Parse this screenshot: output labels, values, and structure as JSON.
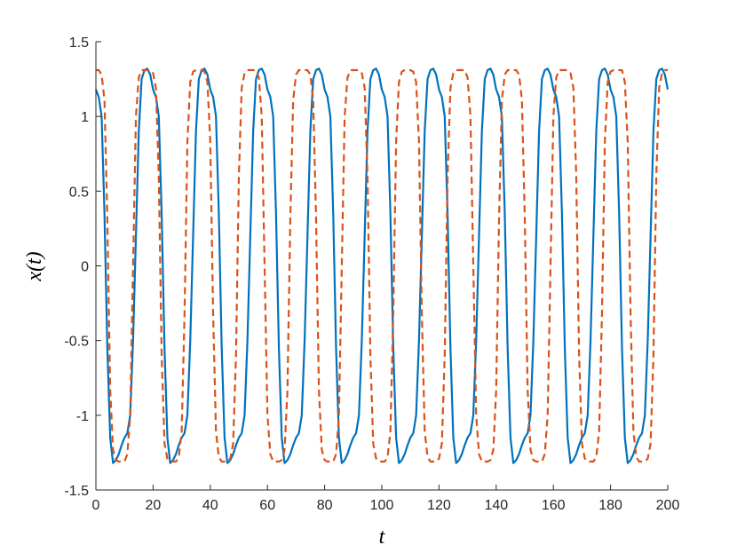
{
  "chart_data": {
    "type": "line",
    "x_label": "t",
    "y_label": "x(t)",
    "x": [
      0,
      1,
      2,
      3,
      4,
      5,
      6,
      7,
      8,
      9,
      10,
      11,
      12,
      13,
      14,
      15,
      16,
      17,
      18,
      19,
      20,
      21,
      22,
      23,
      24,
      25,
      26,
      27,
      28,
      29,
      30,
      31,
      32,
      33,
      34,
      35,
      36,
      37,
      38,
      39,
      40,
      41,
      42,
      43,
      44,
      45,
      46,
      47,
      48,
      49,
      50,
      51,
      52,
      53,
      54,
      55,
      56,
      57,
      58,
      59,
      60,
      61,
      62,
      63,
      64,
      65,
      66,
      67,
      68,
      69,
      70,
      71,
      72,
      73,
      74,
      75,
      76,
      77,
      78,
      79,
      80,
      81,
      82,
      83,
      84,
      85,
      86,
      87,
      88,
      89,
      90,
      91,
      92,
      93,
      94,
      95,
      96,
      97,
      98,
      99,
      100,
      101,
      102,
      103,
      104,
      105,
      106,
      107,
      108,
      109,
      110,
      111,
      112,
      113,
      114,
      115,
      116,
      117,
      118,
      119,
      120,
      121,
      122,
      123,
      124,
      125,
      126,
      127,
      128,
      129,
      130,
      131,
      132,
      133,
      134,
      135,
      136,
      137,
      138,
      139,
      140,
      141,
      142,
      143,
      144,
      145,
      146,
      147,
      148,
      149,
      150,
      151,
      152,
      153,
      154,
      155,
      156,
      157,
      158,
      159,
      160,
      161,
      162,
      163,
      164,
      165,
      166,
      167,
      168,
      169,
      170,
      171,
      172,
      173,
      174,
      175,
      176,
      177,
      178,
      179,
      180,
      181,
      182,
      183,
      184,
      185,
      186,
      187,
      188,
      189,
      190,
      191,
      192,
      193,
      194,
      195,
      196,
      197,
      198,
      199,
      200
    ],
    "series": [
      {
        "color": "#0072bd",
        "dash": false,
        "values": [
          1.18,
          1.13,
          1.0,
          0.35,
          -0.55,
          -1.15,
          -1.32,
          -1.3,
          -1.26,
          -1.2,
          -1.15,
          -1.12,
          -1.0,
          -0.5,
          0.2,
          0.9,
          1.25,
          1.31,
          1.32,
          1.28,
          1.18,
          1.13,
          1.0,
          0.35,
          -0.55,
          -1.15,
          -1.32,
          -1.3,
          -1.26,
          -1.2,
          -1.15,
          -1.12,
          -1.0,
          -0.5,
          0.2,
          0.9,
          1.25,
          1.31,
          1.32,
          1.28,
          1.18,
          1.13,
          1.0,
          0.35,
          -0.55,
          -1.15,
          -1.32,
          -1.3,
          -1.26,
          -1.2,
          -1.15,
          -1.12,
          -1.0,
          -0.5,
          0.2,
          0.9,
          1.25,
          1.31,
          1.32,
          1.28,
          1.18,
          1.13,
          1.0,
          0.35,
          -0.55,
          -1.15,
          -1.32,
          -1.3,
          -1.26,
          -1.2,
          -1.15,
          -1.12,
          -1.0,
          -0.5,
          0.2,
          0.9,
          1.25,
          1.31,
          1.32,
          1.28,
          1.18,
          1.13,
          1.0,
          0.35,
          -0.55,
          -1.15,
          -1.32,
          -1.3,
          -1.26,
          -1.2,
          -1.15,
          -1.12,
          -1.0,
          -0.5,
          0.2,
          0.9,
          1.25,
          1.31,
          1.32,
          1.28,
          1.18,
          1.13,
          1.0,
          0.35,
          -0.55,
          -1.15,
          -1.32,
          -1.3,
          -1.26,
          -1.2,
          -1.15,
          -1.12,
          -1.0,
          -0.5,
          0.2,
          0.9,
          1.25,
          1.31,
          1.32,
          1.28,
          1.18,
          1.13,
          1.0,
          0.35,
          -0.55,
          -1.15,
          -1.32,
          -1.3,
          -1.26,
          -1.2,
          -1.15,
          -1.12,
          -1.0,
          -0.5,
          0.2,
          0.9,
          1.25,
          1.31,
          1.32,
          1.28,
          1.18,
          1.13,
          1.0,
          0.35,
          -0.55,
          -1.15,
          -1.32,
          -1.3,
          -1.26,
          -1.2,
          -1.15,
          -1.12,
          -1.0,
          -0.5,
          0.2,
          0.9,
          1.25,
          1.31,
          1.32,
          1.28,
          1.18,
          1.13,
          1.0,
          0.35,
          -0.55,
          -1.15,
          -1.32,
          -1.3,
          -1.26,
          -1.2,
          -1.15,
          -1.12,
          -1.0,
          -0.5,
          0.2,
          0.9,
          1.25,
          1.31,
          1.32,
          1.28,
          1.18,
          1.13,
          1.0,
          0.35,
          -0.55,
          -1.15,
          -1.32,
          -1.3,
          -1.26,
          -1.2,
          -1.15,
          -1.12,
          -1.0,
          -0.5,
          0.2,
          0.9,
          1.25,
          1.31,
          1.32,
          1.28,
          1.18
        ]
      },
      {
        "color": "#d95319",
        "dash": true,
        "values": [
          1.31,
          1.31,
          1.28,
          1.11,
          0.32,
          -0.83,
          -1.23,
          -1.3,
          -1.31,
          -1.31,
          -1.31,
          -1.26,
          -1.0,
          0,
          1.0,
          1.26,
          1.31,
          1.31,
          1.31,
          1.31,
          1.29,
          1.19,
          0.6,
          -0.6,
          -1.19,
          -1.29,
          -1.31,
          -1.31,
          -1.31,
          -1.28,
          -1.11,
          -0.32,
          0.83,
          1.23,
          1.3,
          1.31,
          1.31,
          1.31,
          1.3,
          1.23,
          0.83,
          -0.32,
          -1.11,
          -1.28,
          -1.31,
          -1.31,
          -1.31,
          -1.29,
          -1.19,
          -0.6,
          0.6,
          1.19,
          1.29,
          1.31,
          1.31,
          1.31,
          1.31,
          1.26,
          1.0,
          0,
          -1.0,
          -1.26,
          -1.31,
          -1.31,
          -1.31,
          -1.3,
          -1.23,
          -0.83,
          0.32,
          1.11,
          1.28,
          1.31,
          1.31,
          1.31,
          1.31,
          1.28,
          1.11,
          0.32,
          -0.83,
          -1.23,
          -1.3,
          -1.31,
          -1.31,
          -1.31,
          -1.26,
          -1.0,
          0,
          1.0,
          1.26,
          1.31,
          1.31,
          1.31,
          1.31,
          1.29,
          1.19,
          0.6,
          -0.6,
          -1.19,
          -1.29,
          -1.31,
          -1.31,
          -1.31,
          -1.28,
          -1.11,
          -0.32,
          0.83,
          1.23,
          1.3,
          1.31,
          1.31,
          1.31,
          1.3,
          1.23,
          0.83,
          -0.32,
          -1.11,
          -1.28,
          -1.31,
          -1.31,
          -1.31,
          -1.29,
          -1.19,
          -0.6,
          0.6,
          1.19,
          1.29,
          1.31,
          1.31,
          1.31,
          1.31,
          1.26,
          1.0,
          0,
          -1.0,
          -1.26,
          -1.31,
          -1.31,
          -1.31,
          -1.3,
          -1.23,
          -0.83,
          0.32,
          1.11,
          1.28,
          1.31,
          1.31,
          1.31,
          1.31,
          1.28,
          1.11,
          0.32,
          -0.83,
          -1.23,
          -1.3,
          -1.31,
          -1.31,
          -1.31,
          -1.26,
          -1.0,
          0,
          1.0,
          1.26,
          1.31,
          1.31,
          1.31,
          1.31,
          1.29,
          1.19,
          0.6,
          -0.6,
          -1.19,
          -1.29,
          -1.31,
          -1.31,
          -1.31,
          -1.28,
          -1.11,
          -0.32,
          0.83,
          1.23,
          1.3,
          1.31,
          1.31,
          1.31,
          1.31,
          1.23,
          0.83,
          -0.32,
          -1.11,
          -1.28,
          -1.31,
          -1.31,
          -1.31,
          -1.29,
          -1.19,
          -0.6,
          0.6,
          1.19,
          1.29,
          1.31,
          1.31
        ]
      }
    ],
    "xlim": [
      0,
      200
    ],
    "xticks": [
      0,
      20,
      40,
      60,
      80,
      100,
      120,
      140,
      160,
      180,
      200
    ],
    "ylim": [
      -1.5,
      1.5
    ],
    "yticks": [
      -1.5,
      -1,
      -0.5,
      0,
      0.5,
      1,
      1.5
    ],
    "grid": false
  }
}
